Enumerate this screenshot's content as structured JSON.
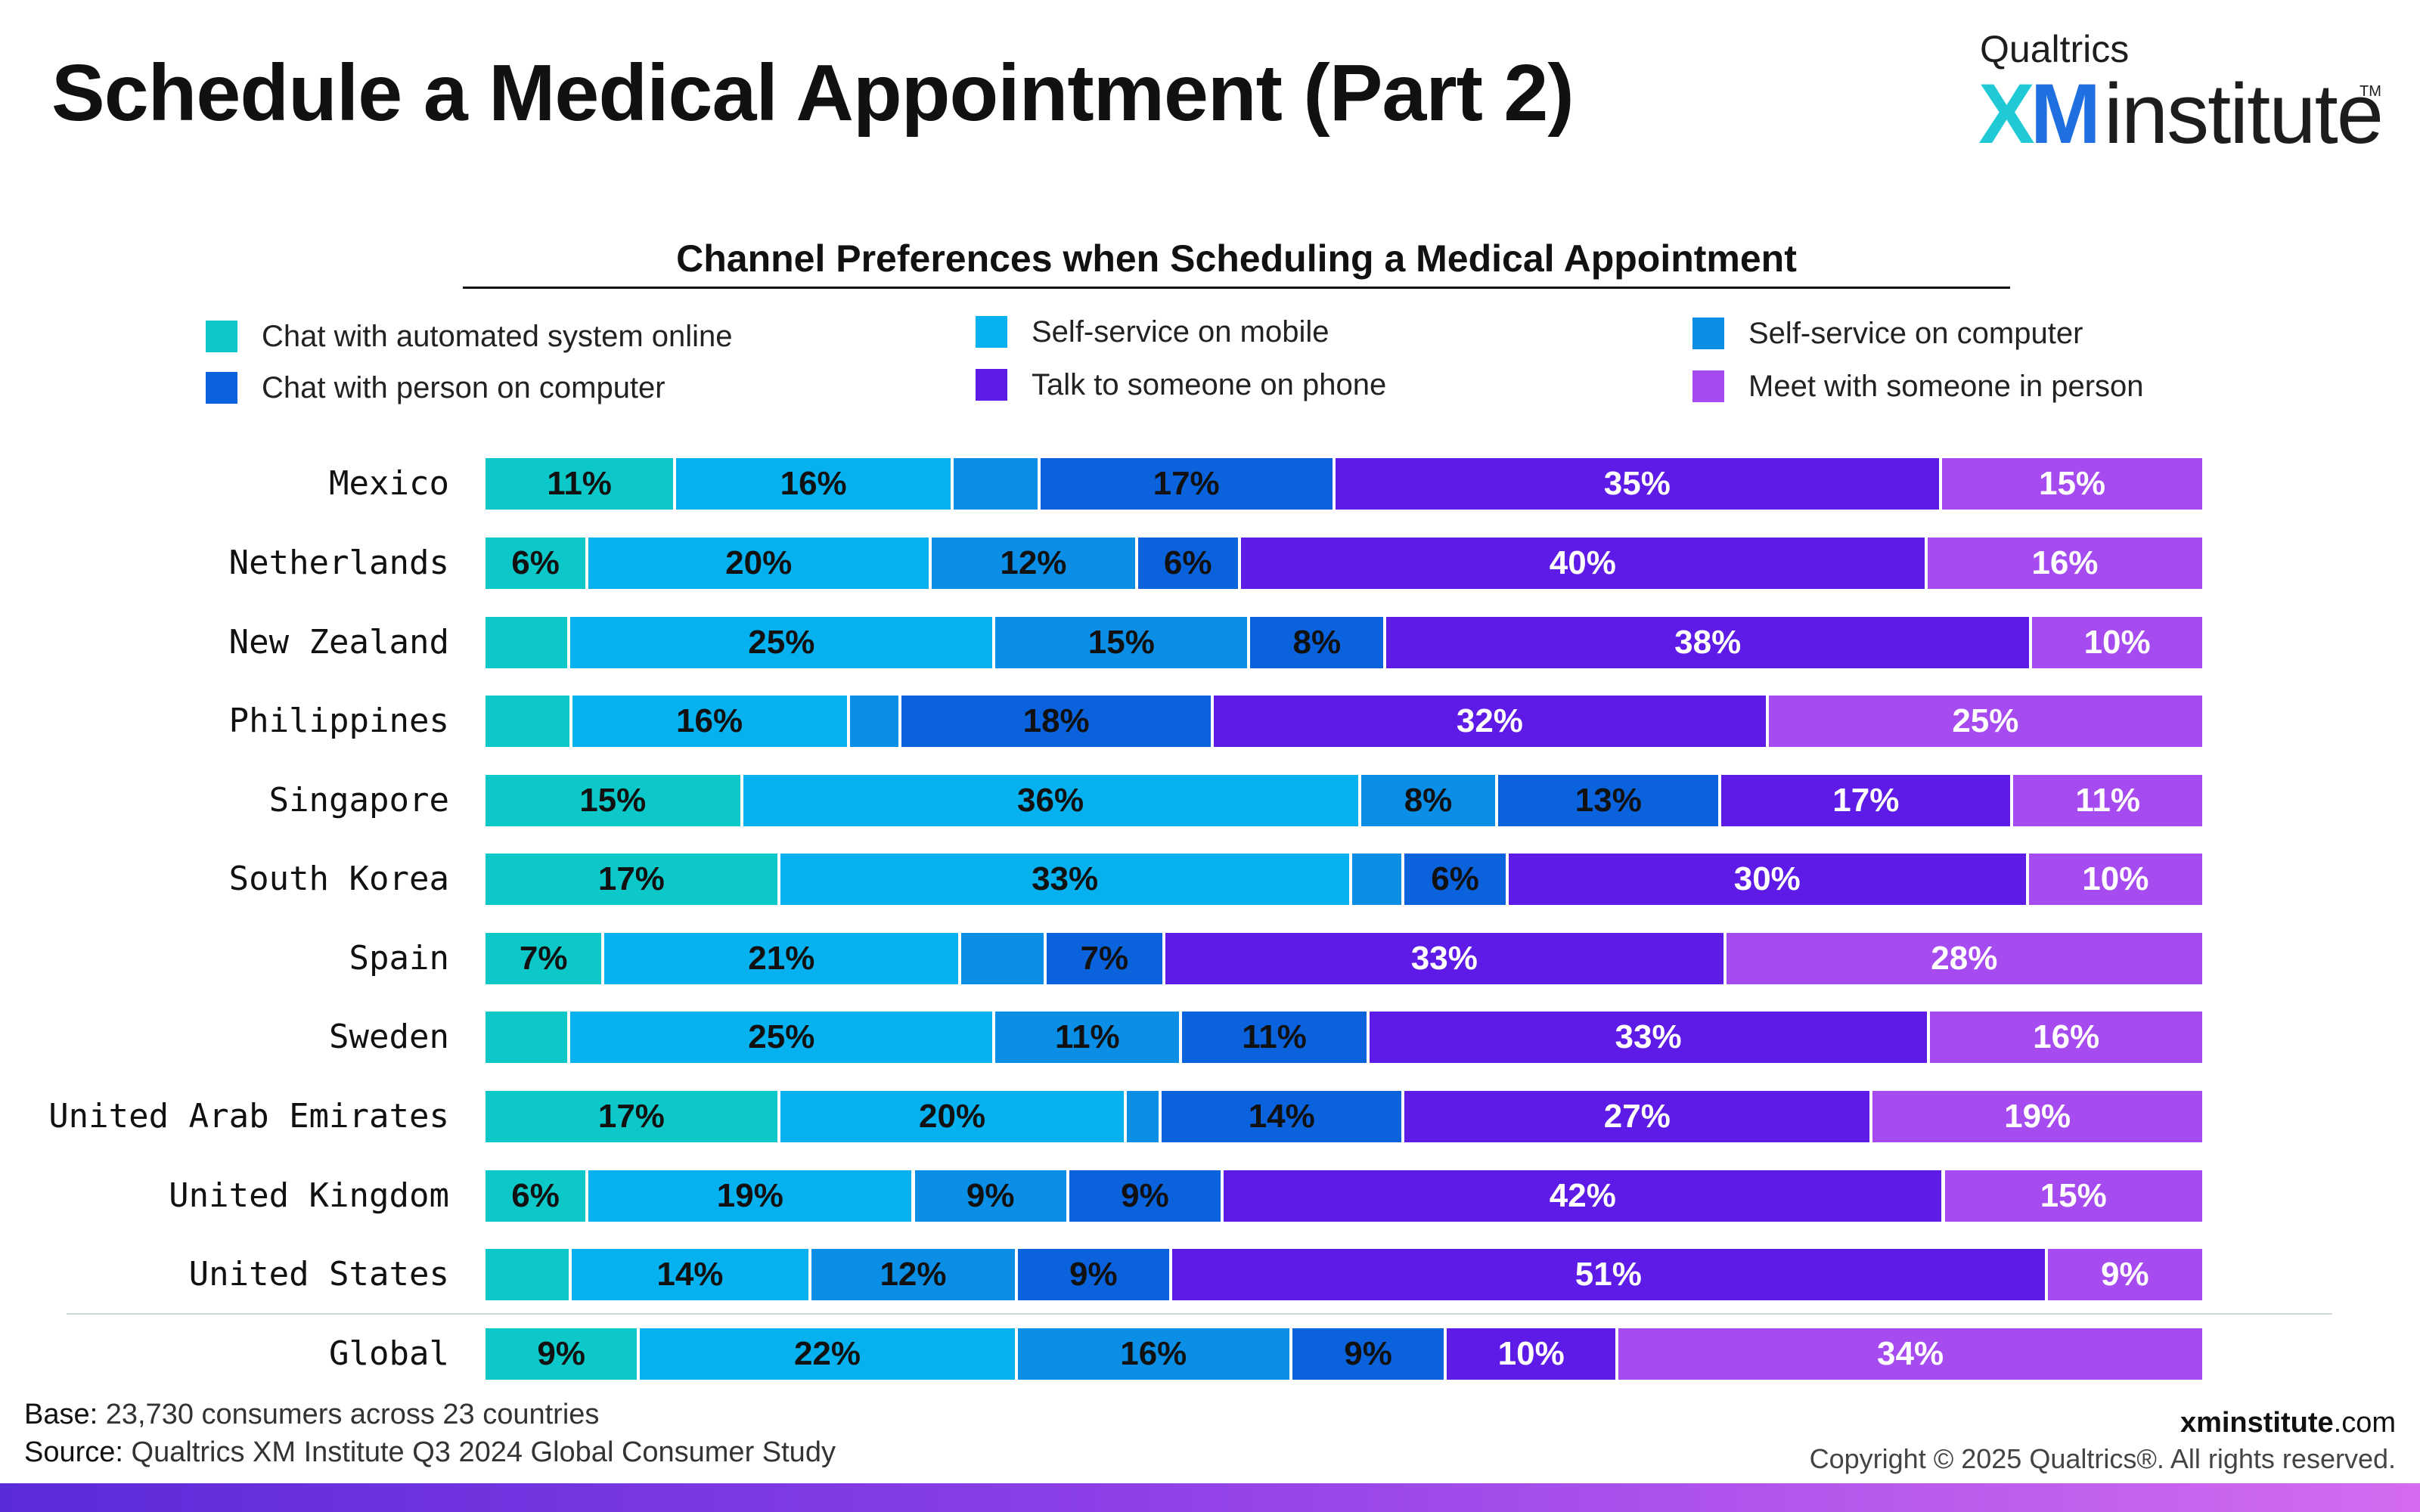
{
  "page": {
    "title": "Schedule a Medical Appointment (Part 2)",
    "logo": {
      "top": "Qualtrics",
      "xm": "XM",
      "word": "institute",
      "tm": "TM"
    }
  },
  "chart_data": {
    "type": "bar",
    "orientation": "horizontal",
    "stacked": true,
    "title": "Channel Preferences when Scheduling a Medical Appointment",
    "legend_placement": "top",
    "grid": false,
    "categories": [
      "Mexico",
      "Netherlands",
      "New Zealand",
      "Philippines",
      "Singapore",
      "South Korea",
      "Spain",
      "Sweden",
      "United Arab Emirates",
      "United Kingdom",
      "United States",
      "Global"
    ],
    "series": [
      {
        "name": "Chat with automated system online",
        "color": "#0cc8c8",
        "text_color": "#111111",
        "values": [
          11,
          6,
          5,
          5,
          15,
          17,
          7,
          5,
          17,
          6,
          5,
          9
        ],
        "labels": [
          "11%",
          "6%",
          "",
          "",
          "15%",
          "17%",
          "7%",
          "",
          "17%",
          "6%",
          "",
          "9%"
        ]
      },
      {
        "name": "Self-service on mobile",
        "color": "#05b1ee",
        "text_color": "#111111",
        "values": [
          16,
          20,
          25,
          16,
          36,
          33,
          21,
          25,
          20,
          19,
          14,
          22
        ],
        "labels": [
          "16%",
          "20%",
          "25%",
          "16%",
          "36%",
          "33%",
          "21%",
          "25%",
          "20%",
          "19%",
          "14%",
          "22%"
        ]
      },
      {
        "name": "Self-service on computer",
        "color": "#0a8ee6",
        "text_color": "#111111",
        "values": [
          5,
          12,
          15,
          3,
          8,
          3,
          5,
          11,
          2,
          9,
          12,
          16
        ],
        "labels": [
          "",
          "12%",
          "15%",
          "",
          "8%",
          "",
          "",
          "11%",
          "",
          "9%",
          "12%",
          "16%"
        ]
      },
      {
        "name": "Chat with person on computer",
        "color": "#0a63dc",
        "text_color": "#111111",
        "values": [
          17,
          6,
          8,
          18,
          13,
          6,
          7,
          11,
          14,
          9,
          9,
          9
        ],
        "labels": [
          "17%",
          "6%",
          "8%",
          "18%",
          "13%",
          "6%",
          "7%",
          "11%",
          "14%",
          "9%",
          "9%",
          "9%"
        ]
      },
      {
        "name": "Talk to someone on phone",
        "color": "#5e1ae6",
        "text_color": "#ffffff",
        "values": [
          35,
          40,
          38,
          32,
          17,
          30,
          33,
          33,
          27,
          42,
          51,
          10
        ],
        "labels": [
          "35%",
          "40%",
          "38%",
          "32%",
          "17%",
          "30%",
          "33%",
          "33%",
          "27%",
          "42%",
          "51%",
          "10%"
        ]
      },
      {
        "name": "Meet with someone in person",
        "color": "#a64bf0",
        "text_color": "#ffffff",
        "values": [
          15,
          16,
          10,
          25,
          11,
          10,
          28,
          16,
          19,
          15,
          9,
          34
        ],
        "labels": [
          "15%",
          "16%",
          "10%",
          "25%",
          "11%",
          "10%",
          "28%",
          "16%",
          "19%",
          "15%",
          "9%",
          "34%"
        ]
      }
    ]
  },
  "legend": {
    "items": [
      {
        "label": "Chat with automated system online",
        "color": "#0cc8c8"
      },
      {
        "label": "Self-service on mobile",
        "color": "#05b1ee"
      },
      {
        "label": "Self-service on computer",
        "color": "#0a8ee6"
      },
      {
        "label": "Chat with person on computer",
        "color": "#0a63dc"
      },
      {
        "label": "Talk to someone on phone",
        "color": "#5e1ae6"
      },
      {
        "label": "Meet with someone in person",
        "color": "#a64bf0"
      }
    ]
  },
  "footer": {
    "base_label": "Base:",
    "base_text": " 23,730 consumers across 23 countries",
    "source_label": "Source:",
    "source_text": " Qualtrics XM Institute Q3 2024 Global Consumer Study",
    "site_bold": "xminstitute",
    "site_rest": ".com",
    "copyright": "Copyright © 2025 Qualtrics®. All rights reserved."
  }
}
